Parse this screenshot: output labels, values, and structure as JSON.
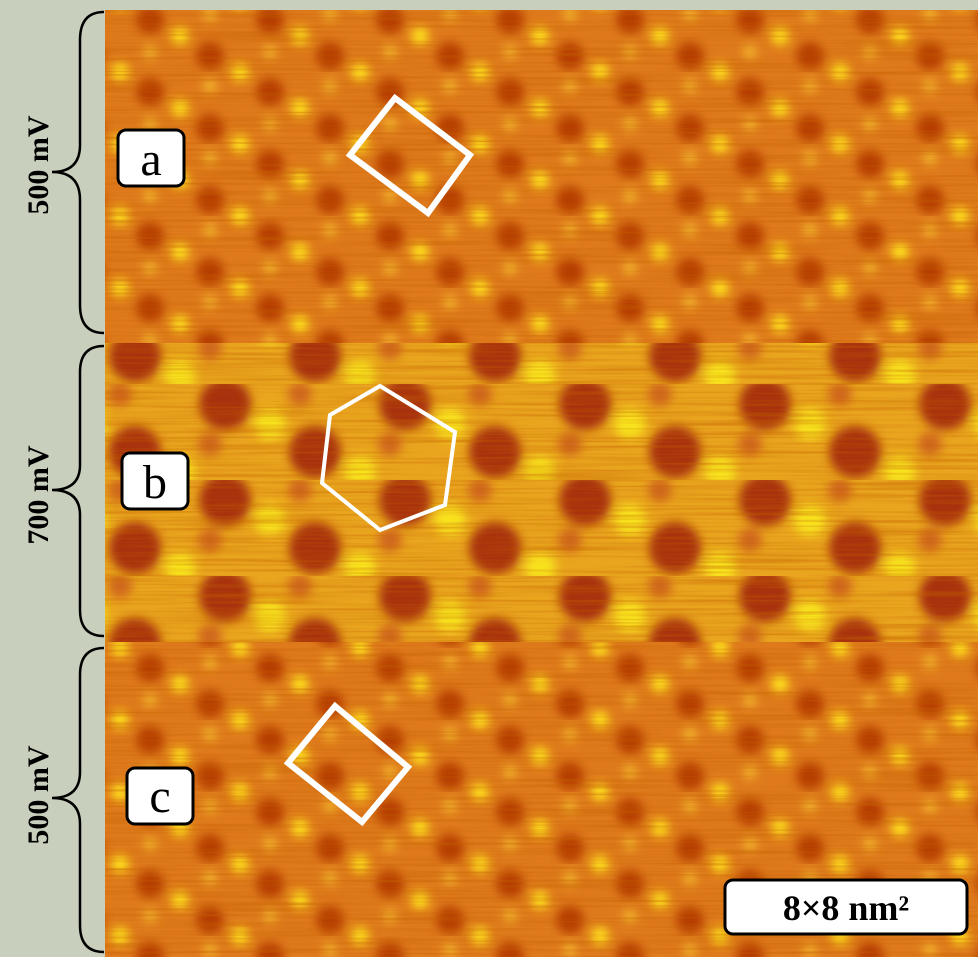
{
  "panels": [
    {
      "label": "a",
      "voltage": "500 mV"
    },
    {
      "label": "b",
      "voltage": "700 mV"
    },
    {
      "label": "c",
      "voltage": "500 mV"
    }
  ],
  "scale_bar": "8×8 nm²"
}
